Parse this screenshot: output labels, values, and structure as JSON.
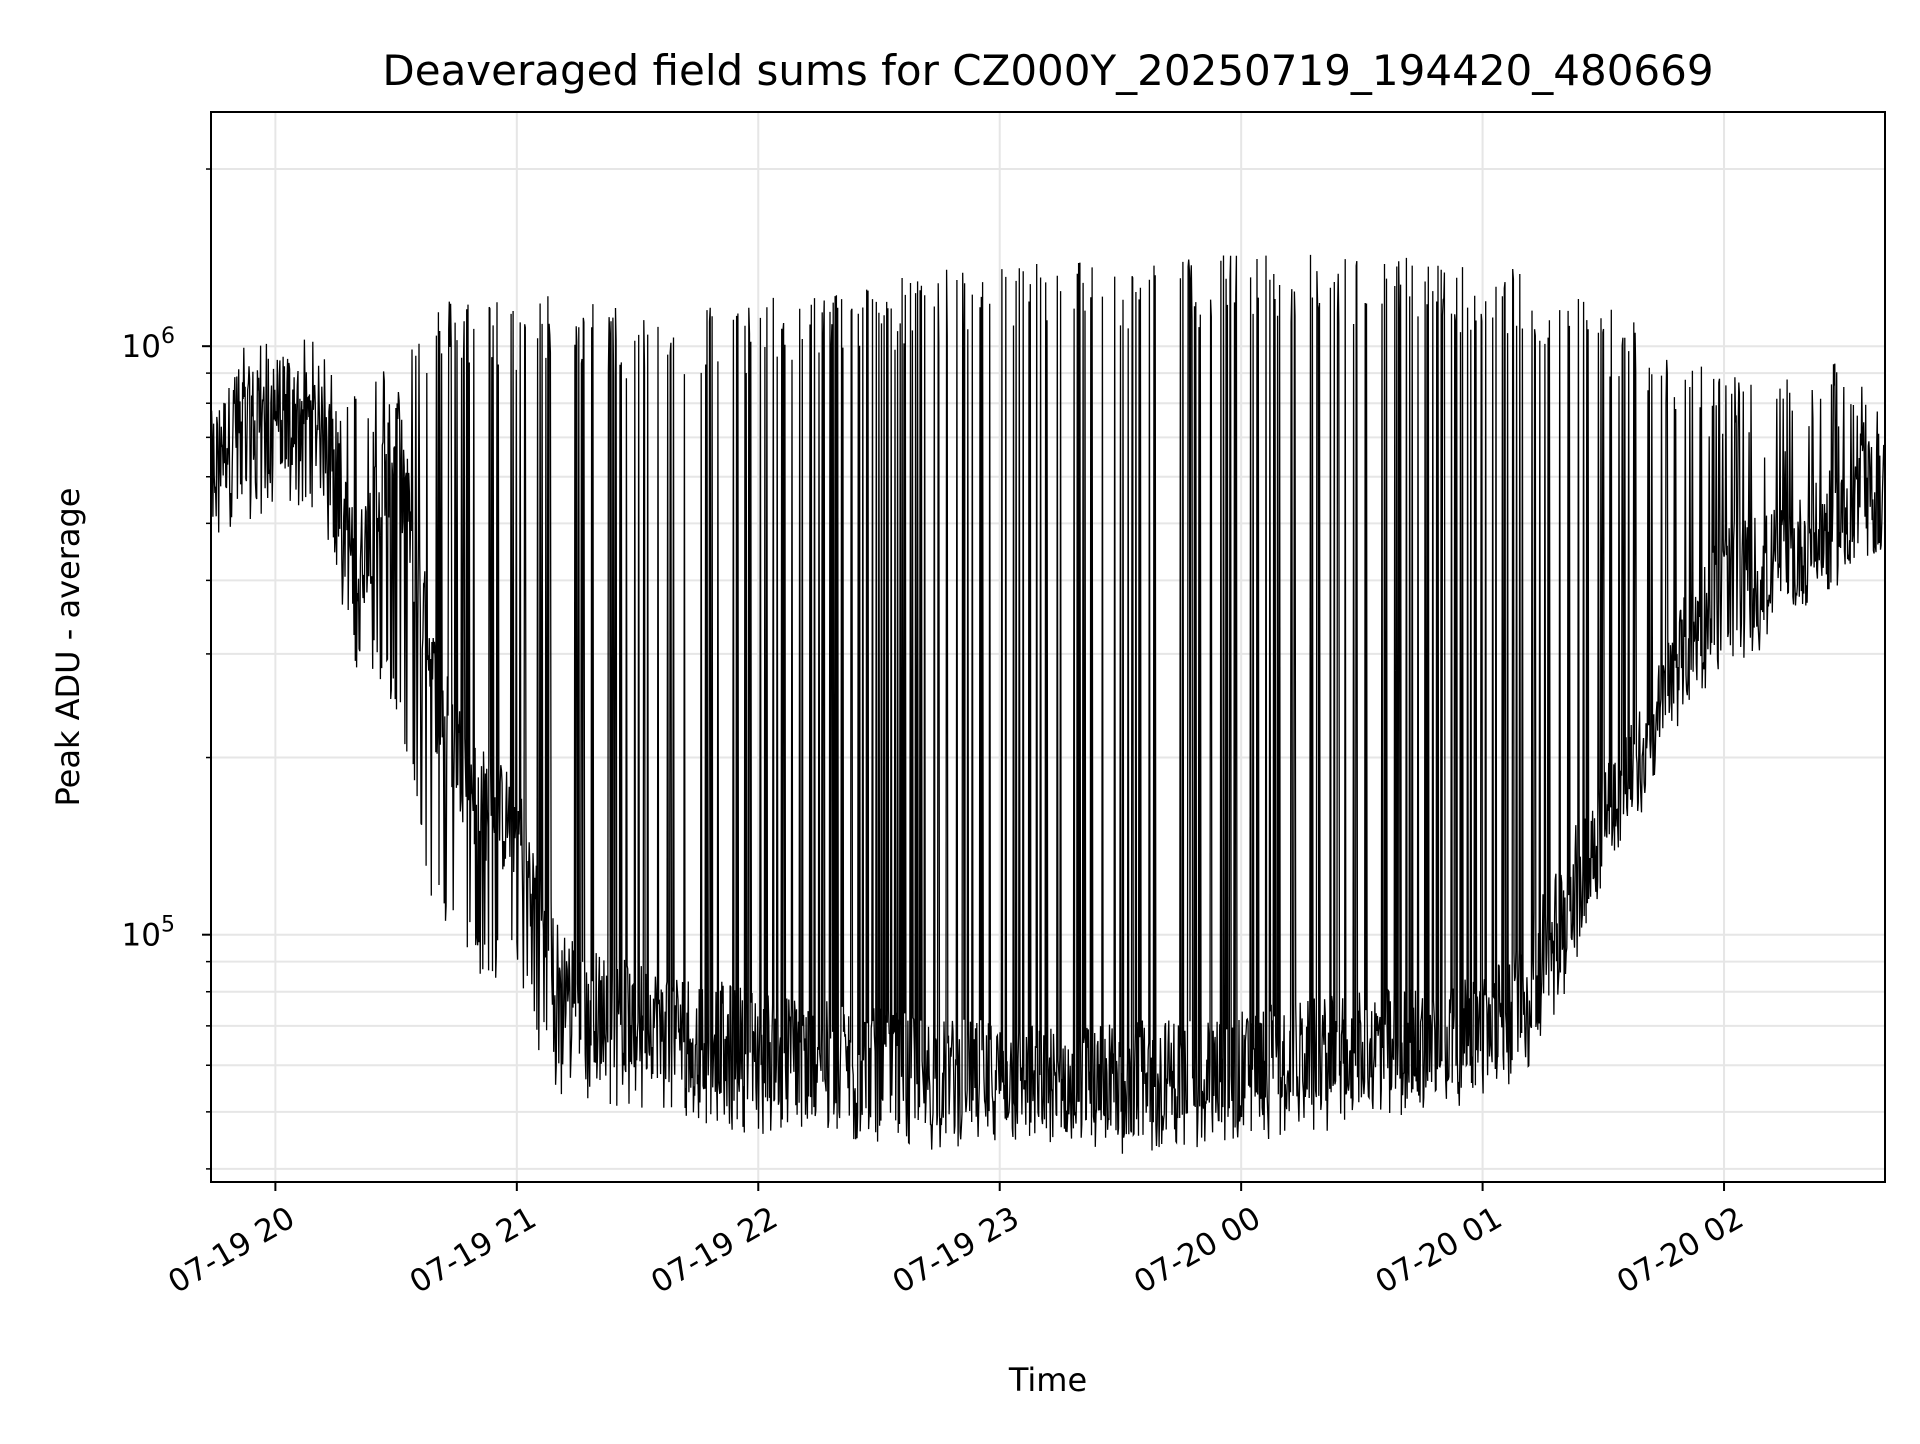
{
  "chart_data": {
    "type": "line",
    "title": "Deaveraged field sums for CZ000Y_20250719_194420_480669",
    "xlabel": "Time",
    "ylabel": "Peak ADU - average",
    "yscale": "log",
    "xlim": [
      "2025-07-19T19:44",
      "2025-07-20T02:40"
    ],
    "ylim": [
      38000,
      2500000
    ],
    "grid": true,
    "legend": "none",
    "line_color": "#000000",
    "x_ticks": [
      {
        "value": "2025-07-19T20:00",
        "label": "07-19 20"
      },
      {
        "value": "2025-07-19T21:00",
        "label": "07-19 21"
      },
      {
        "value": "2025-07-19T22:00",
        "label": "07-19 22"
      },
      {
        "value": "2025-07-19T23:00",
        "label": "07-19 23"
      },
      {
        "value": "2025-07-20T00:00",
        "label": "07-20 00"
      },
      {
        "value": "2025-07-20T01:00",
        "label": "07-20 01"
      },
      {
        "value": "2025-07-20T02:00",
        "label": "07-20 02"
      }
    ],
    "y_ticks": [
      {
        "value": 100000,
        "base": "10",
        "exp": "5"
      },
      {
        "value": 1000000,
        "base": "10",
        "exp": "6"
      }
    ],
    "series": [
      {
        "x": [
          "2025-07-19T19:44",
          "2025-07-19T19:50",
          "2025-07-19T20:00",
          "2025-07-19T20:10",
          "2025-07-19T20:15",
          "2025-07-19T20:20",
          "2025-07-19T20:30",
          "2025-07-19T20:40",
          "2025-07-19T20:50",
          "2025-07-19T21:00",
          "2025-07-19T21:10",
          "2025-07-19T21:20",
          "2025-07-19T21:30",
          "2025-07-19T21:45",
          "2025-07-19T22:00",
          "2025-07-19T22:15",
          "2025-07-19T22:30",
          "2025-07-19T22:45",
          "2025-07-19T23:00",
          "2025-07-19T23:15",
          "2025-07-19T23:30",
          "2025-07-19T23:45",
          "2025-07-20T00:00",
          "2025-07-20T00:15",
          "2025-07-20T00:30",
          "2025-07-20T00:45",
          "2025-07-20T01:00",
          "2025-07-20T01:10",
          "2025-07-20T01:20",
          "2025-07-20T01:30",
          "2025-07-20T01:40",
          "2025-07-20T01:50",
          "2025-07-20T02:00",
          "2025-07-20T02:10",
          "2025-07-20T02:20",
          "2025-07-20T02:30",
          "2025-07-20T02:40"
        ],
        "base": [
          620000,
          720000,
          780000,
          730000,
          600000,
          400000,
          700000,
          250000,
          170000,
          150000,
          85000,
          75000,
          72000,
          68000,
          65000,
          62000,
          60000,
          58000,
          57000,
          56000,
          57000,
          58000,
          60000,
          62000,
          64000,
          66000,
          68000,
          80000,
          110000,
          160000,
          200000,
          300000,
          400000,
          420000,
          450000,
          520000,
          560000
        ],
        "peak": [
          800000,
          1000000,
          1050000,
          1020000,
          950000,
          850000,
          1000000,
          1200000,
          1250000,
          1200000,
          1250000,
          1200000,
          1150000,
          1200000,
          1200000,
          1250000,
          1300000,
          1350000,
          1400000,
          1420000,
          1400000,
          1420000,
          1450000,
          1440000,
          1430000,
          1420000,
          1400000,
          1350000,
          1250000,
          1200000,
          1100000,
          1000000,
          900000,
          850000,
          900000,
          950000,
          750000
        ],
        "trough": [
          450000,
          520000,
          560000,
          560000,
          420000,
          300000,
          250000,
          110000,
          90000,
          85000,
          55000,
          55000,
          52000,
          50000,
          48000,
          47000,
          46000,
          45000,
          45000,
          44000,
          44000,
          45000,
          46000,
          48000,
          50000,
          52000,
          55000,
          60000,
          80000,
          130000,
          180000,
          250000,
          300000,
          320000,
          380000,
          420000,
          470000
        ]
      }
    ]
  }
}
